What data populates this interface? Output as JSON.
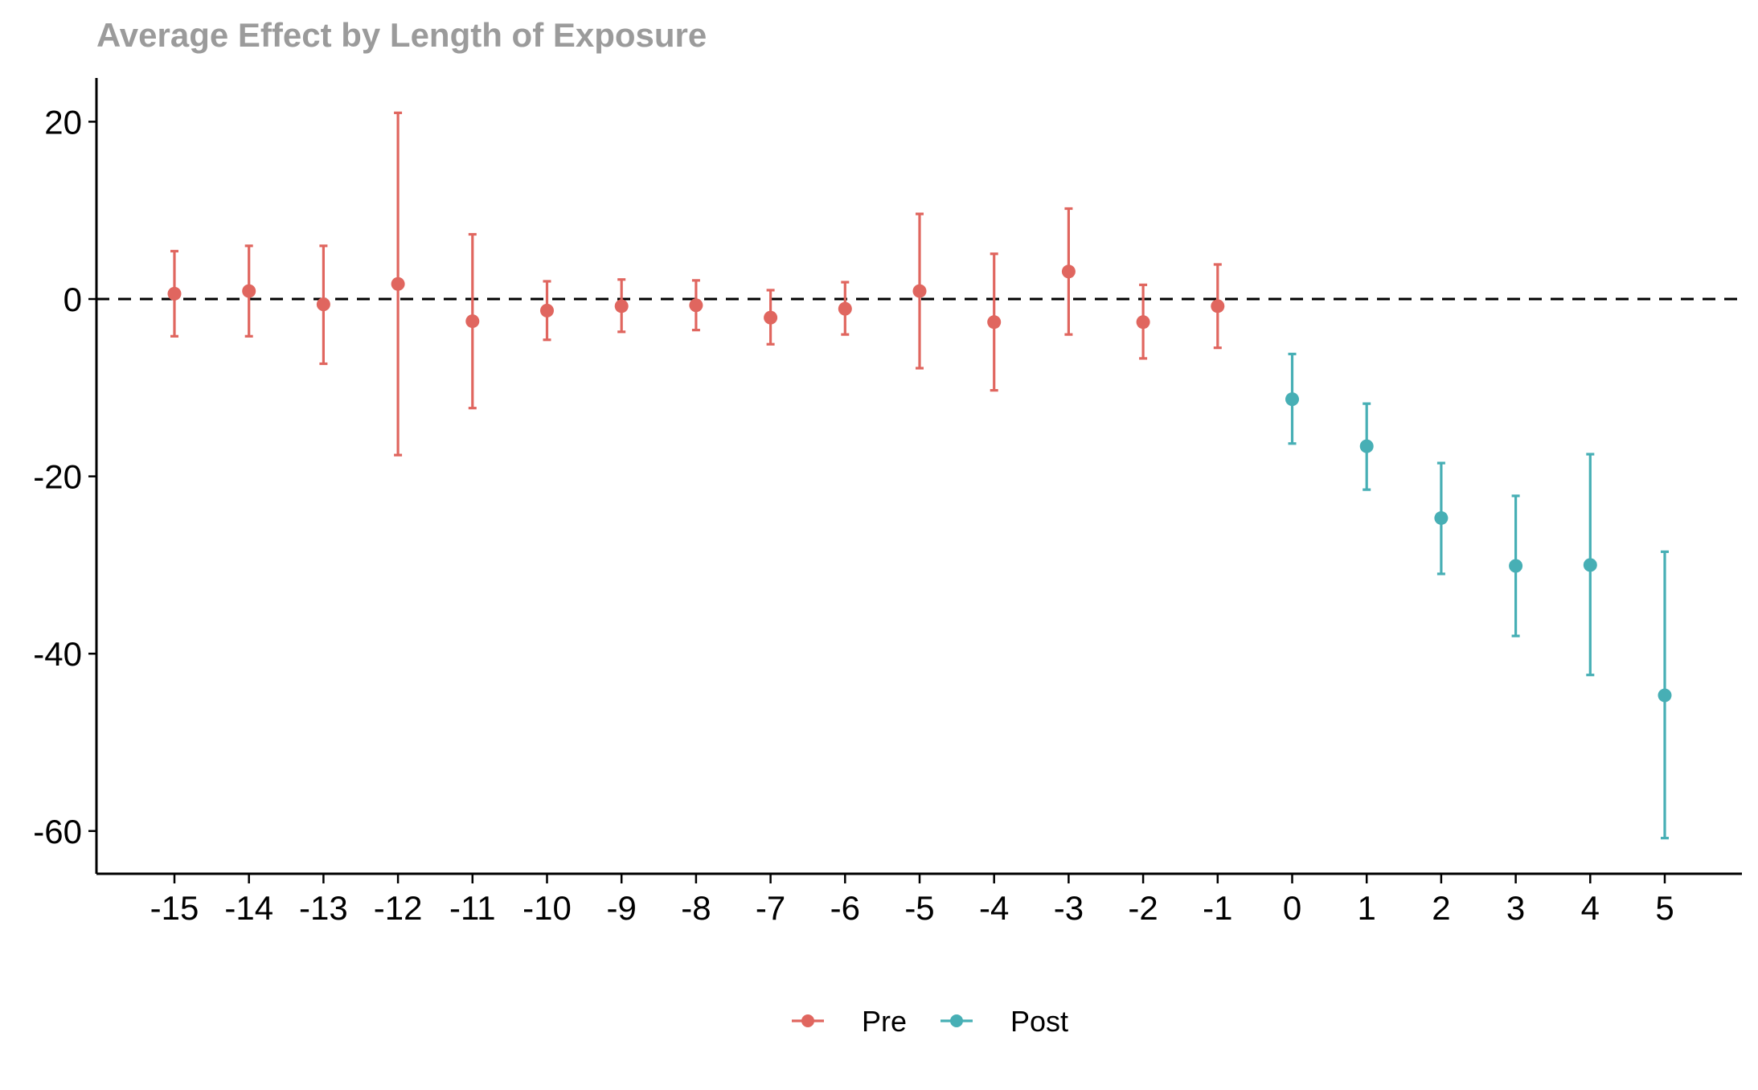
{
  "chart_data": {
    "type": "scatter",
    "title": "Average Effect by Length of Exposure",
    "xlabel": "",
    "ylabel": "",
    "x_ticks": [
      "-15",
      "-14",
      "-13",
      "-12",
      "-11",
      "-10",
      "-9",
      "-8",
      "-7",
      "-6",
      "-5",
      "-4",
      "-3",
      "-2",
      "-1",
      "0",
      "1",
      "2",
      "3",
      "4",
      "5"
    ],
    "y_ticks": [
      "20",
      "0",
      "-20",
      "-40",
      "-60"
    ],
    "ylim": [
      -65,
      25
    ],
    "reference_line": {
      "y": 0,
      "style": "dashed"
    },
    "grid": false,
    "legend_position": "bottom",
    "series": [
      {
        "name": "Pre",
        "color": "#E0665F",
        "points": [
          {
            "x": -15,
            "y": 0.6,
            "lo": -4.2,
            "hi": 5.4
          },
          {
            "x": -14,
            "y": 0.9,
            "lo": -4.2,
            "hi": 6.0
          },
          {
            "x": -13,
            "y": -0.6,
            "lo": -7.3,
            "hi": 6.0
          },
          {
            "x": -12,
            "y": 1.7,
            "lo": -17.6,
            "hi": 21.0
          },
          {
            "x": -11,
            "y": -2.5,
            "lo": -12.3,
            "hi": 7.3
          },
          {
            "x": -10,
            "y": -1.3,
            "lo": -4.6,
            "hi": 2.0
          },
          {
            "x": -9,
            "y": -0.8,
            "lo": -3.7,
            "hi": 2.2
          },
          {
            "x": -8,
            "y": -0.7,
            "lo": -3.5,
            "hi": 2.1
          },
          {
            "x": -7,
            "y": -2.1,
            "lo": -5.1,
            "hi": 1.0
          },
          {
            "x": -6,
            "y": -1.1,
            "lo": -4.0,
            "hi": 1.9
          },
          {
            "x": -5,
            "y": 0.9,
            "lo": -7.8,
            "hi": 9.6
          },
          {
            "x": -4,
            "y": -2.6,
            "lo": -10.3,
            "hi": 5.1
          },
          {
            "x": -3,
            "y": 3.1,
            "lo": -4.0,
            "hi": 10.2
          },
          {
            "x": -2,
            "y": -2.6,
            "lo": -6.7,
            "hi": 1.6
          },
          {
            "x": -1,
            "y": -0.8,
            "lo": -5.5,
            "hi": 3.9
          }
        ]
      },
      {
        "name": "Post",
        "color": "#47AFB5",
        "points": [
          {
            "x": 0,
            "y": -11.3,
            "lo": -16.3,
            "hi": -6.2
          },
          {
            "x": 1,
            "y": -16.6,
            "lo": -21.5,
            "hi": -11.8
          },
          {
            "x": 2,
            "y": -24.7,
            "lo": -31.0,
            "hi": -18.5
          },
          {
            "x": 3,
            "y": -30.1,
            "lo": -38.0,
            "hi": -22.2
          },
          {
            "x": 4,
            "y": -30.0,
            "lo": -42.4,
            "hi": -17.5
          },
          {
            "x": 5,
            "y": -44.7,
            "lo": -60.8,
            "hi": -28.5
          }
        ]
      }
    ],
    "colors": {
      "title": "#9B9B9B",
      "axis": "#000000",
      "reference_line": "#000000"
    }
  }
}
